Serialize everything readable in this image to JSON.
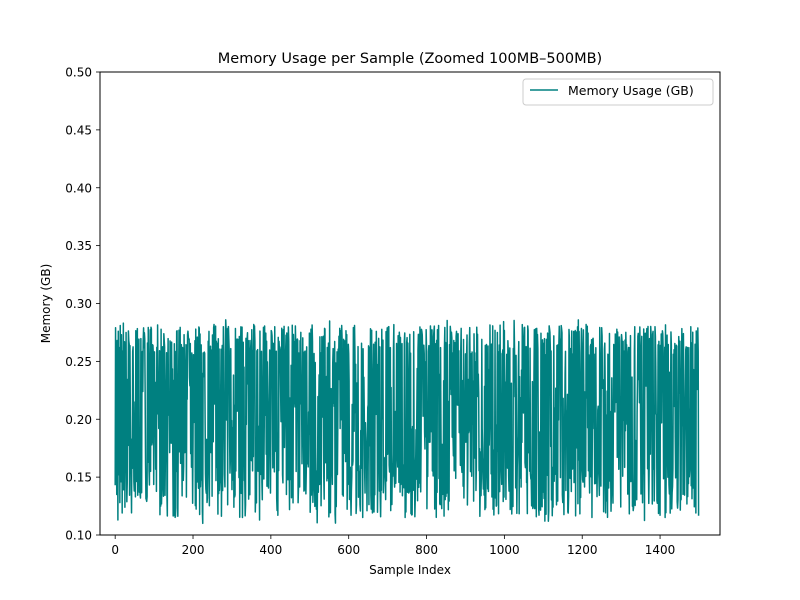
{
  "chart_data": {
    "type": "line",
    "title": "Memory Usage per Sample (Zoomed 100MB–500MB)",
    "xlabel": "Sample Index",
    "ylabel": "Memory (GB)",
    "xlim": [
      -39,
      1554
    ],
    "ylim": [
      0.1,
      0.5
    ],
    "xticks": [
      0,
      200,
      400,
      600,
      800,
      1000,
      1200,
      1400
    ],
    "yticks": [
      0.1,
      0.15,
      0.2,
      0.25,
      0.3,
      0.35,
      0.4,
      0.45,
      0.5
    ],
    "ytick_labels": [
      "0.10",
      "0.15",
      "0.20",
      "0.25",
      "0.30",
      "0.35",
      "0.40",
      "0.45",
      "0.50"
    ],
    "legend_position": "top-right",
    "grid": false,
    "series": [
      {
        "name": "Memory Usage (GB)",
        "color": "#008080",
        "n_samples": 1500,
        "value_range": [
          0.11,
          0.286
        ],
        "note": "Dense noisy series oscillating roughly between 0.11 and 0.285 GB across samples 0–1499",
        "sample_values": [
          0.143,
          0.279,
          0.165,
          0.241,
          0.135,
          0.268,
          0.198,
          0.113,
          0.276,
          0.152,
          0.221,
          0.262,
          0.128,
          0.281,
          0.187,
          0.146,
          0.273,
          0.233,
          0.119,
          0.259,
          0.171,
          0.283,
          0.139,
          0.206,
          0.267,
          0.124,
          0.248,
          0.181,
          0.275,
          0.157
        ]
      }
    ]
  }
}
